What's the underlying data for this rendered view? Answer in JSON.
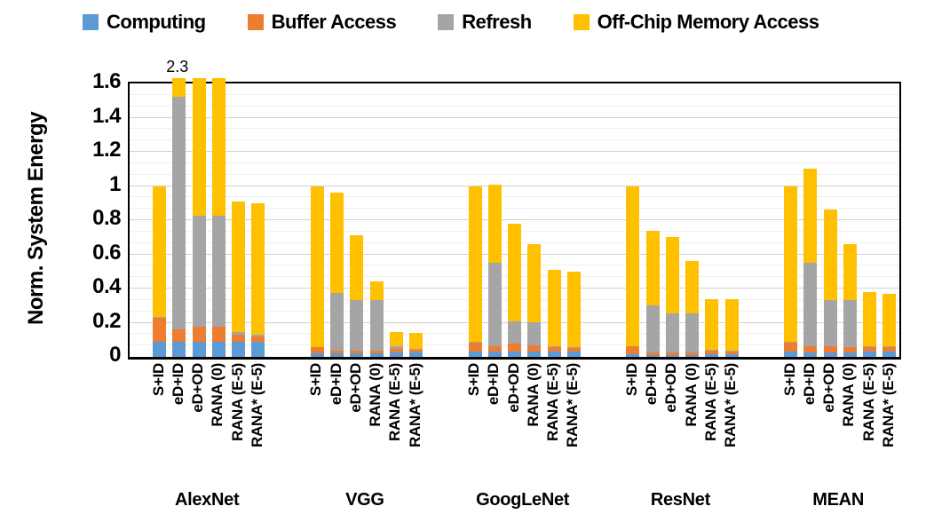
{
  "chart_data": {
    "type": "bar",
    "stacked": true,
    "ylabel": "Norm. System Energy",
    "ylim": [
      0,
      1.6
    ],
    "ytick_labels": [
      "0",
      "0.2",
      "0.4",
      "0.6",
      "0.8",
      "1",
      "1.2",
      "1.4",
      "1.6"
    ],
    "grid": {
      "major_step": 0.2,
      "minor_divisions_per_major": 3,
      "visible": true
    },
    "legend_position": "top",
    "legend": [
      {
        "name": "Computing",
        "color": "#5B9BD5"
      },
      {
        "name": "Buffer Access",
        "color": "#ED7D31"
      },
      {
        "name": "Refresh",
        "color": "#A5A5A5"
      },
      {
        "name": "Off-Chip Memory Access",
        "color": "#FFC000"
      }
    ],
    "bar_labels": [
      "S+ID",
      "eD+ID",
      "eD+OD",
      "RANA (0)",
      "RANA (E-5)",
      "RANA* (E-5)"
    ],
    "series_order": [
      "Computing",
      "Buffer Access",
      "Refresh",
      "Off-Chip Memory Access"
    ],
    "groups": [
      {
        "name": "AlexNet",
        "bars": [
          {
            "label": "S+ID",
            "values": [
              0.09,
              0.14,
              0.005,
              0.765
            ],
            "total": 1.0,
            "clipped": false
          },
          {
            "label": "eD+ID",
            "values": [
              0.09,
              0.07,
              1.36,
              0.78
            ],
            "total": 2.3,
            "clipped": true,
            "annotation": "2.3"
          },
          {
            "label": "eD+OD",
            "values": [
              0.09,
              0.085,
              0.65,
              0.805
            ],
            "total": 1.63,
            "clipped": true
          },
          {
            "label": "RANA (0)",
            "values": [
              0.09,
              0.085,
              0.65,
              0.805
            ],
            "total": 1.63,
            "clipped": true
          },
          {
            "label": "RANA (E-5)",
            "values": [
              0.09,
              0.04,
              0.015,
              0.765
            ],
            "total": 0.91,
            "clipped": false
          },
          {
            "label": "RANA* (E-5)",
            "values": [
              0.09,
              0.03,
              0.01,
              0.77
            ],
            "total": 0.9,
            "clipped": false
          }
        ]
      },
      {
        "name": "VGG",
        "bars": [
          {
            "label": "S+ID",
            "values": [
              0.02,
              0.035,
              0.0,
              0.945
            ],
            "total": 1.0,
            "clipped": false
          },
          {
            "label": "eD+ID",
            "values": [
              0.02,
              0.015,
              0.34,
              0.585
            ],
            "total": 0.96,
            "clipped": false
          },
          {
            "label": "eD+OD",
            "values": [
              0.02,
              0.015,
              0.3,
              0.375
            ],
            "total": 0.71,
            "clipped": false
          },
          {
            "label": "RANA (0)",
            "values": [
              0.02,
              0.015,
              0.3,
              0.105
            ],
            "total": 0.44,
            "clipped": false
          },
          {
            "label": "RANA (E-5)",
            "values": [
              0.025,
              0.02,
              0.015,
              0.085
            ],
            "total": 0.145,
            "clipped": false
          },
          {
            "label": "RANA* (E-5)",
            "values": [
              0.025,
              0.015,
              0.005,
              0.095
            ],
            "total": 0.14,
            "clipped": false
          }
        ]
      },
      {
        "name": "GoogLeNet",
        "bars": [
          {
            "label": "S+ID",
            "values": [
              0.03,
              0.055,
              0.005,
              0.91
            ],
            "total": 1.0,
            "clipped": false
          },
          {
            "label": "eD+ID",
            "values": [
              0.03,
              0.03,
              0.49,
              0.46
            ],
            "total": 1.01,
            "clipped": false
          },
          {
            "label": "eD+OD",
            "values": [
              0.03,
              0.05,
              0.13,
              0.57
            ],
            "total": 0.78,
            "clipped": false
          },
          {
            "label": "RANA (0)",
            "values": [
              0.03,
              0.04,
              0.135,
              0.455
            ],
            "total": 0.66,
            "clipped": false
          },
          {
            "label": "RANA (E-5)",
            "values": [
              0.03,
              0.025,
              0.005,
              0.45
            ],
            "total": 0.51,
            "clipped": false
          },
          {
            "label": "RANA* (E-5)",
            "values": [
              0.03,
              0.02,
              0.005,
              0.445
            ],
            "total": 0.5,
            "clipped": false
          }
        ]
      },
      {
        "name": "ResNet",
        "bars": [
          {
            "label": "S+ID",
            "values": [
              0.015,
              0.045,
              0.0,
              0.94
            ],
            "total": 1.0,
            "clipped": false
          },
          {
            "label": "eD+ID",
            "values": [
              0.01,
              0.015,
              0.275,
              0.44
            ],
            "total": 0.74,
            "clipped": false
          },
          {
            "label": "eD+OD",
            "values": [
              0.01,
              0.015,
              0.23,
              0.445
            ],
            "total": 0.7,
            "clipped": false
          },
          {
            "label": "RANA (0)",
            "values": [
              0.01,
              0.015,
              0.23,
              0.305
            ],
            "total": 0.56,
            "clipped": false
          },
          {
            "label": "RANA (E-5)",
            "values": [
              0.015,
              0.02,
              0.005,
              0.3
            ],
            "total": 0.34,
            "clipped": false
          },
          {
            "label": "RANA* (E-5)",
            "values": [
              0.015,
              0.015,
              0.005,
              0.305
            ],
            "total": 0.34,
            "clipped": false
          }
        ]
      },
      {
        "name": "MEAN",
        "bars": [
          {
            "label": "S+ID",
            "values": [
              0.03,
              0.055,
              0.005,
              0.91
            ],
            "total": 1.0,
            "clipped": false
          },
          {
            "label": "eD+ID",
            "values": [
              0.025,
              0.035,
              0.49,
              0.55
            ],
            "total": 1.1,
            "clipped": false
          },
          {
            "label": "eD+OD",
            "values": [
              0.025,
              0.035,
              0.27,
              0.53
            ],
            "total": 0.86,
            "clipped": false
          },
          {
            "label": "RANA (0)",
            "values": [
              0.025,
              0.03,
              0.275,
              0.33
            ],
            "total": 0.66,
            "clipped": false
          },
          {
            "label": "RANA (E-5)",
            "values": [
              0.03,
              0.03,
              0.005,
              0.315
            ],
            "total": 0.38,
            "clipped": false
          },
          {
            "label": "RANA* (E-5)",
            "values": [
              0.03,
              0.025,
              0.005,
              0.31
            ],
            "total": 0.37,
            "clipped": false
          }
        ]
      }
    ],
    "annotations": [
      {
        "text": "2.3",
        "group": "AlexNet",
        "bar": "eD+ID",
        "position": "above-clipped-bar"
      }
    ]
  }
}
